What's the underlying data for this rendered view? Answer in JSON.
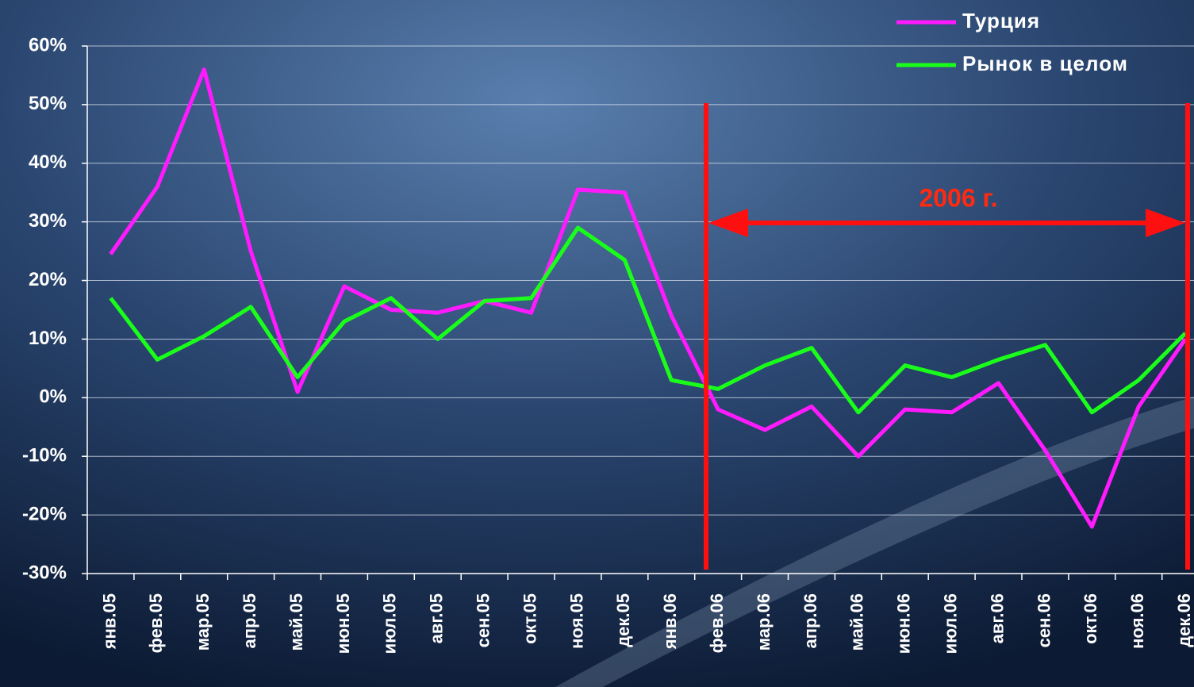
{
  "chart_data": {
    "type": "line",
    "categories": [
      "янв.05",
      "фев.05",
      "мар.05",
      "апр.05",
      "май.05",
      "июн.05",
      "июл.05",
      "авг.05",
      "сен.05",
      "окт.05",
      "ноя.05",
      "дек.05",
      "янв.06",
      "фев.06",
      "мар.06",
      "апр.06",
      "май.06",
      "июн.06",
      "июл.06",
      "авг.06",
      "сен.06",
      "окт.06",
      "ноя.06",
      "дек.06"
    ],
    "series": [
      {
        "name": "Турция",
        "color": "#ff1aff",
        "values": [
          24.5,
          36,
          56,
          25,
          1,
          19,
          15,
          14.5,
          16.5,
          14.5,
          35.5,
          35,
          14,
          -2,
          -5.5,
          -1.5,
          -10,
          -2,
          -2.5,
          2.5,
          -9,
          -22,
          -1.5,
          10
        ]
      },
      {
        "name": "Рынок в целом",
        "color": "#1aff1a",
        "values": [
          17,
          6.5,
          10.5,
          15.5,
          3.5,
          13,
          17,
          10,
          16.5,
          17,
          29,
          23.5,
          3,
          1.5,
          5.5,
          8.5,
          -2.5,
          5.5,
          3.5,
          6.5,
          9,
          -2.5,
          3,
          11
        ]
      }
    ],
    "ylim": [
      -30,
      60
    ],
    "yticks": [
      {
        "value": -30,
        "label": "-30%"
      },
      {
        "value": -20,
        "label": "-20%"
      },
      {
        "value": -10,
        "label": "-10%"
      },
      {
        "value": 0,
        "label": "0%"
      },
      {
        "value": 10,
        "label": "10%"
      },
      {
        "value": 20,
        "label": "20%"
      },
      {
        "value": 30,
        "label": "30%"
      },
      {
        "value": 40,
        "label": "40%"
      },
      {
        "value": 50,
        "label": "50%"
      },
      {
        "value": 60,
        "label": "60%"
      }
    ],
    "grid": true,
    "annotation": "2006 г."
  }
}
